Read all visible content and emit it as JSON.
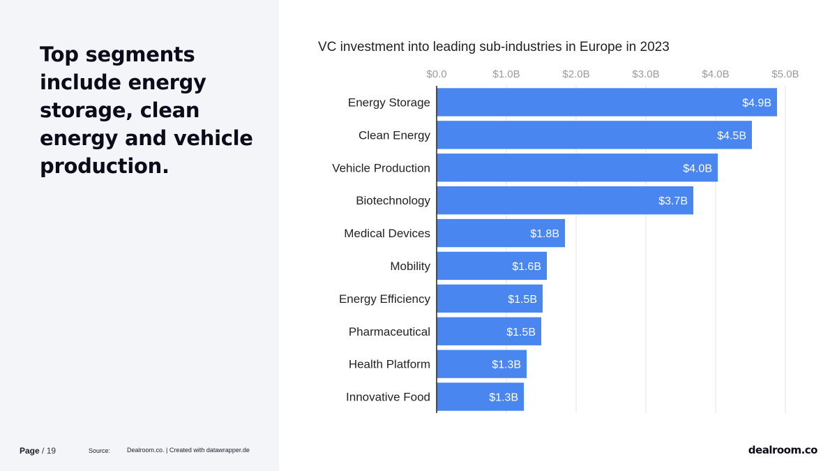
{
  "headline": "Top segments include energy storage, clean energy and vehicle production.",
  "footer": {
    "page_label": "Page",
    "page_number": "/ 19",
    "source_label": "Source:",
    "source_text": "Dealroom.co. | Created with datawrapper.de"
  },
  "logo": "dealroom.co",
  "colors": {
    "bar": "#4a86f0",
    "panel": "#f4f5f9"
  },
  "chart_data": {
    "type": "bar",
    "orientation": "horizontal",
    "title": "VC investment into leading sub-industries in Europe in 2023",
    "xlim": [
      0,
      5.0
    ],
    "ticks": [
      0,
      1,
      2,
      3,
      4,
      5
    ],
    "tick_labels": [
      "$0.0",
      "$1.0B",
      "$2.0B",
      "$3.0B",
      "$4.0B",
      "$5.0B"
    ],
    "categories": [
      "Energy Storage",
      "Clean Energy",
      "Vehicle Production",
      "Biotechnology",
      "Medical Devices",
      "Mobility",
      "Energy Efficiency",
      "Pharmaceutical",
      "Health Platform",
      "Innovative Food"
    ],
    "values": [
      4.88,
      4.52,
      4.03,
      3.68,
      1.84,
      1.58,
      1.52,
      1.5,
      1.29,
      1.25
    ],
    "value_labels": [
      "$4.9B",
      "$4.5B",
      "$4.0B",
      "$3.7B",
      "$1.8B",
      "$1.6B",
      "$1.5B",
      "$1.5B",
      "$1.3B",
      "$1.3B"
    ],
    "grid": true,
    "axis_position": "top"
  }
}
